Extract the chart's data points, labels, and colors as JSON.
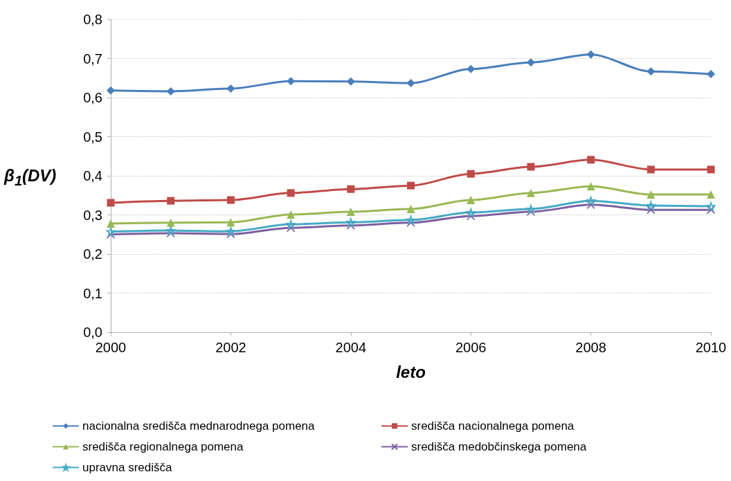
{
  "chart_data": {
    "type": "line",
    "xlabel": "leto",
    "ylabel": "β$_{1}$(DV)",
    "x": [
      2000,
      2001,
      2002,
      2003,
      2004,
      2005,
      2006,
      2007,
      2008,
      2009,
      2010
    ],
    "xlim": [
      2000,
      2010
    ],
    "xticks": [
      2000,
      2002,
      2004,
      2006,
      2008,
      2010
    ],
    "ylim": [
      0,
      0.8
    ],
    "yticks": [
      {
        "value": 0,
        "label": "0,0"
      },
      {
        "value": 0.1,
        "label": "0,1"
      },
      {
        "value": 0.2,
        "label": "0,2"
      },
      {
        "value": 0.3,
        "label": "0,3"
      },
      {
        "value": 0.4,
        "label": "0,4"
      },
      {
        "value": 0.5,
        "label": "0,5"
      },
      {
        "value": 0.6,
        "label": "0,6"
      },
      {
        "value": 0.7,
        "label": "0,7"
      },
      {
        "value": 0.8,
        "label": "0,8"
      }
    ],
    "grid": "y",
    "legend": "bottom",
    "series": [
      {
        "name": "nacionalna središča mednarodnega pomena",
        "color": "#4a7ebb",
        "marker": "diamond",
        "values": [
          0.618,
          0.616,
          0.623,
          0.642,
          0.641,
          0.637,
          0.673,
          0.69,
          0.71,
          0.667,
          0.66
        ]
      },
      {
        "name": "središča nacionalnega pomena",
        "color": "#be4b48",
        "marker": "square",
        "values": [
          0.331,
          0.336,
          0.338,
          0.356,
          0.366,
          0.375,
          0.405,
          0.423,
          0.441,
          0.416,
          0.416
        ]
      },
      {
        "name": "središča regionalnega pomena",
        "color": "#98b954",
        "marker": "triangle",
        "values": [
          0.278,
          0.28,
          0.281,
          0.301,
          0.308,
          0.315,
          0.338,
          0.356,
          0.373,
          0.352,
          0.352
        ]
      },
      {
        "name": "središča medobčinskega pomena",
        "color": "#7d60a0",
        "marker": "cross",
        "values": [
          0.25,
          0.253,
          0.251,
          0.267,
          0.273,
          0.28,
          0.297,
          0.308,
          0.326,
          0.313,
          0.313
        ]
      },
      {
        "name": "upravna središča",
        "color": "#46aac5",
        "marker": "star",
        "values": [
          0.257,
          0.26,
          0.258,
          0.276,
          0.281,
          0.287,
          0.306,
          0.315,
          0.336,
          0.324,
          0.322
        ]
      }
    ]
  }
}
